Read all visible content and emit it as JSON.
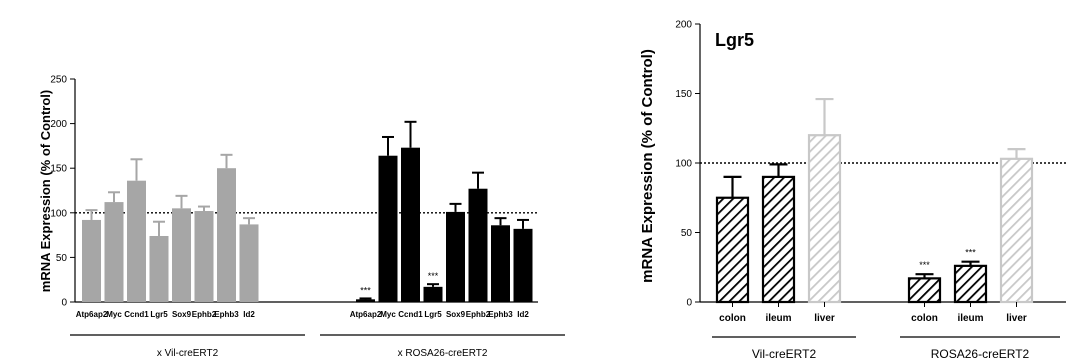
{
  "chart_data": [
    {
      "type": "bar",
      "title": "",
      "ylabel": "mRNA Expression (% of Control)",
      "ylim": [
        0,
        250
      ],
      "yticks": [
        0,
        50,
        100,
        150,
        200,
        250
      ],
      "reference_line": 100,
      "groups": [
        {
          "label": "x Vil-creERT2",
          "color": "#a6a6a6",
          "categories": [
            "Atp6ap2",
            "Myc",
            "Ccnd1",
            "Lgr5",
            "Sox9",
            "Ephb2",
            "Ephb3",
            "Id2"
          ],
          "values": [
            92,
            112,
            136,
            74,
            105,
            102,
            150,
            87
          ],
          "errors": [
            11,
            11,
            24,
            16,
            14,
            5,
            15,
            7
          ],
          "significance": [
            "",
            "",
            "",
            "",
            "",
            "",
            "",
            ""
          ]
        },
        {
          "label": "x ROSA26-creERT2",
          "color": "#000000",
          "categories": [
            "Atp6ap2",
            "Myc",
            "Ccnd1",
            "Lgr5",
            "Sox9",
            "Ephb2",
            "Ephb3",
            "Id2"
          ],
          "values": [
            3,
            164,
            173,
            17,
            101,
            127,
            86,
            82
          ],
          "errors": [
            1,
            21,
            29,
            3,
            9,
            18,
            8,
            10
          ],
          "significance": [
            "***",
            "",
            "",
            "***",
            "",
            "",
            "",
            ""
          ]
        }
      ]
    },
    {
      "type": "bar",
      "title": "Lgr5",
      "ylabel": "mRNA Expression (% of Control)",
      "ylim": [
        0,
        200
      ],
      "yticks": [
        0,
        50,
        100,
        150,
        200
      ],
      "reference_line": 100,
      "groups": [
        {
          "label": "Vil-creERT2",
          "categories": [
            "colon",
            "ileum",
            "liver"
          ],
          "colors": [
            "#000000",
            "#000000",
            "#c8c8c8"
          ],
          "values": [
            75,
            90,
            120
          ],
          "errors": [
            15,
            9,
            26
          ],
          "significance": [
            "",
            "",
            ""
          ]
        },
        {
          "label": "ROSA26-creERT2",
          "categories": [
            "colon",
            "ileum",
            "liver"
          ],
          "colors": [
            "#000000",
            "#000000",
            "#c8c8c8"
          ],
          "values": [
            17,
            26,
            103
          ],
          "errors": [
            3,
            3,
            7
          ],
          "significance": [
            "***",
            "***",
            ""
          ]
        }
      ]
    }
  ]
}
